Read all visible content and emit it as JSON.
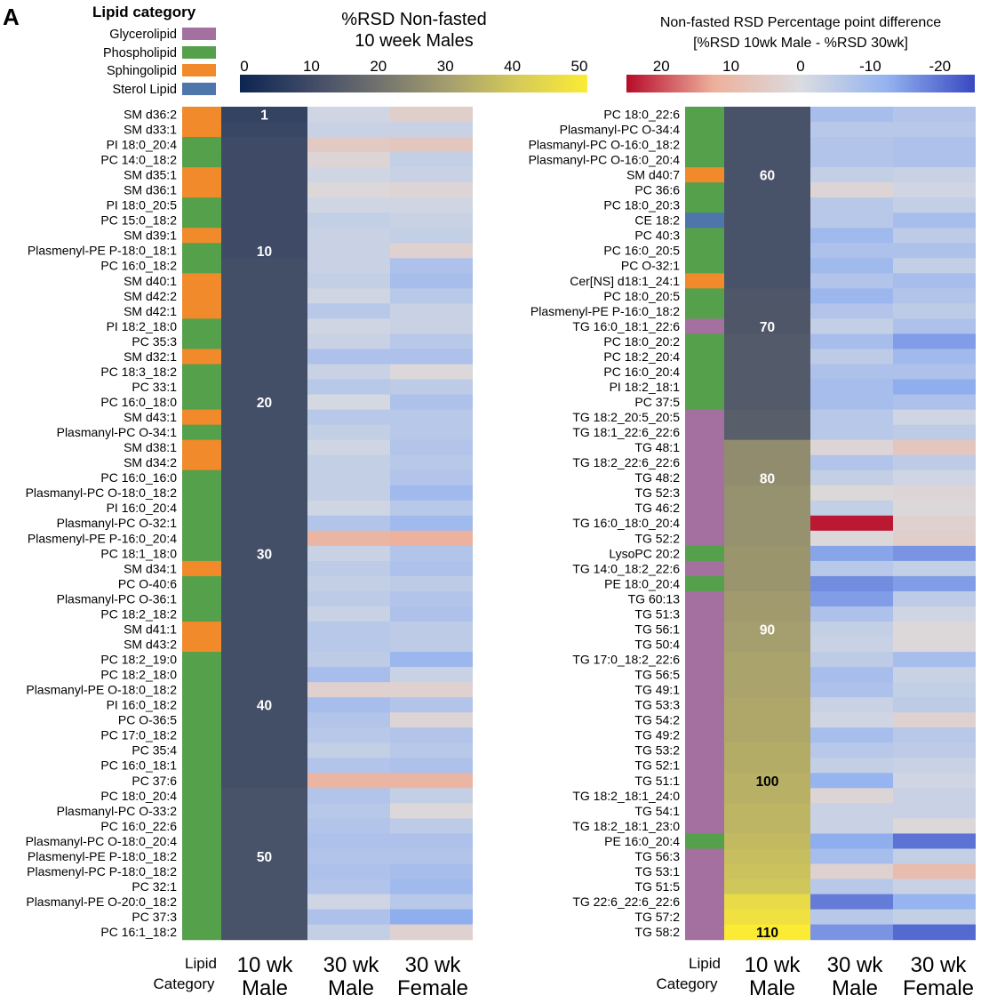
{
  "panel_label": "A",
  "legend": {
    "title": "Lipid category",
    "items": [
      {
        "label": "Glycerolipid",
        "color": "#A3709F"
      },
      {
        "label": "Phospholipid",
        "color": "#54A04B"
      },
      {
        "label": "Sphingolipid",
        "color": "#F18A2A"
      },
      {
        "label": "Sterol Lipid",
        "color": "#4F76AB"
      }
    ]
  },
  "colorbar_rsd": {
    "title_line1": "%RSD Non-fasted",
    "title_line2": "10 week Males",
    "ticks": [
      "0",
      "10",
      "20",
      "30",
      "40",
      "50"
    ],
    "range": [
      0,
      50
    ],
    "colors": [
      "#0D2552",
      "#3E4A66",
      "#72726E",
      "#A59E6E",
      "#D5CB58",
      "#FBEB35"
    ]
  },
  "colorbar_diff": {
    "title_line1": "Non-fasted RSD Percentage point difference",
    "title_line2": "[%RSD 10wk Male - %RSD 30wk]",
    "ticks": [
      "20",
      "10",
      "0",
      "-10",
      "-20"
    ],
    "range": [
      25,
      -25
    ],
    "colors": [
      "#B70B2A",
      "#EDB09B",
      "#DADCE0",
      "#93B2F0",
      "#3848C2"
    ]
  },
  "column_labels": {
    "category": [
      "Lipid",
      "Category"
    ],
    "col1": [
      "10 wk",
      "Male"
    ],
    "col2": [
      "30 wk",
      "Male"
    ],
    "col3": [
      "30 wk",
      "Female"
    ]
  },
  "chart_data": [
    {
      "type": "heatmap",
      "rank_labels": [
        "1",
        "10",
        "20",
        "30",
        "40",
        "50"
      ],
      "columns": [
        "Lipid Category",
        "10 wk Male",
        "30 wk Male",
        "30 wk Female"
      ],
      "rows": [
        [
          "SM d36:2",
          "S",
          8,
          -2,
          4
        ],
        [
          "SM d33:1",
          "S",
          9,
          -3,
          -3
        ],
        [
          "PI 18:0_20:4",
          "P",
          10,
          5,
          6
        ],
        [
          "PC 14:0_18:2",
          "P",
          10,
          2,
          -4
        ],
        [
          "SM d35:1",
          "S",
          10,
          -2,
          -3
        ],
        [
          "SM d36:1",
          "S",
          10,
          1,
          2
        ],
        [
          "PI 18:0_20:5",
          "P",
          10,
          -2,
          -2
        ],
        [
          "PC 15:0_18:2",
          "P",
          10,
          -4,
          -3
        ],
        [
          "SM d39:1",
          "S",
          10,
          -3,
          -4
        ],
        [
          "Plasmenyl-PE P-18:0_18:1",
          "P",
          10,
          -3,
          3
        ],
        [
          "PC 16:0_18:2",
          "P",
          11,
          -3,
          -8
        ],
        [
          "SM d40:1",
          "S",
          11,
          -4,
          -9
        ],
        [
          "SM d42:2",
          "S",
          11,
          -2,
          -6
        ],
        [
          "SM d42:1",
          "S",
          11,
          -6,
          -3
        ],
        [
          "PI 18:2_18:0",
          "P",
          11,
          -2,
          -3
        ],
        [
          "PC 35:3",
          "P",
          11,
          -3,
          -6
        ],
        [
          "SM d32:1",
          "S",
          11,
          -8,
          -8
        ],
        [
          "PC 18:3_18:2",
          "P",
          11,
          -3,
          1
        ],
        [
          "PC 33:1",
          "P",
          11,
          -6,
          -5
        ],
        [
          "PC 16:0_18:0",
          "P",
          11,
          -1,
          -8
        ],
        [
          "SM d43:1",
          "S",
          11,
          -6,
          -6
        ],
        [
          "Plasmanyl-PC O-34:1",
          "P",
          11,
          -4,
          -6
        ],
        [
          "SM d38:1",
          "S",
          11,
          -2,
          -7
        ],
        [
          "SM d34:2",
          "S",
          11,
          -4,
          -6
        ],
        [
          "PC 16:0_16:0",
          "P",
          11,
          -4,
          -7
        ],
        [
          "Plasmanyl-PC O-18:0_18:2",
          "P",
          11,
          -4,
          -10
        ],
        [
          "PI 16:0_20:4",
          "P",
          11,
          -2,
          -6
        ],
        [
          "Plasmanyl-PC O-32:1",
          "P",
          11,
          -7,
          -10
        ],
        [
          "Plasmenyl-PE P-16:0_20:4",
          "P",
          11,
          11,
          12
        ],
        [
          "PC 18:1_18:0",
          "P",
          11,
          -3,
          -7
        ],
        [
          "SM d34:1",
          "S",
          11,
          -5,
          -8
        ],
        [
          "PC O-40:6",
          "P",
          11,
          -4,
          -5
        ],
        [
          "Plasmanyl-PC O-36:1",
          "P",
          11,
          -5,
          -7
        ],
        [
          "PC 18:2_18:2",
          "P",
          11,
          -3,
          -8
        ],
        [
          "SM d41:1",
          "S",
          11,
          -6,
          -5
        ],
        [
          "SM d43:2",
          "S",
          11,
          -6,
          -5
        ],
        [
          "PC 18:2_19:0",
          "P",
          11,
          -5,
          -11
        ],
        [
          "PC 18:2_18:0",
          "P",
          11,
          -9,
          -3
        ],
        [
          "Plasmanyl-PE O-18:0_18:2",
          "P",
          11,
          3,
          3
        ],
        [
          "PI 16:0_18:2",
          "P",
          11,
          -9,
          -7
        ],
        [
          "PC O-36:5",
          "P",
          11,
          -7,
          2
        ],
        [
          "PC 17:0_18:2",
          "P",
          11,
          -6,
          -7
        ],
        [
          "PC 35:4",
          "P",
          11,
          -4,
          -6
        ],
        [
          "PC 16:0_18:1",
          "P",
          11,
          -7,
          -8
        ],
        [
          "PC 37:6",
          "P",
          11,
          11,
          11
        ],
        [
          "PC 18:0_20:4",
          "P",
          12,
          -7,
          -4
        ],
        [
          "Plasmanyl-PC O-33:2",
          "P",
          12,
          -6,
          1
        ],
        [
          "PC 16:0_22:6",
          "P",
          12,
          -7,
          -5
        ],
        [
          "Plasmanyl-PC O-18:0_20:4",
          "P",
          12,
          -8,
          -8
        ],
        [
          "Plasmenyl-PE P-18:0_18:2",
          "P",
          12,
          -7,
          -7
        ],
        [
          "Plasmenyl-PC P-18:0_18:2",
          "P",
          12,
          -8,
          -9
        ],
        [
          "PC 32:1",
          "P",
          12,
          -7,
          -10
        ],
        [
          "Plasmanyl-PE O-20:0_18:2",
          "P",
          12,
          -2,
          -6
        ],
        [
          "PC 37:3",
          "P",
          12,
          -8,
          -13
        ],
        [
          "PC 16:1_18:2",
          "P",
          12,
          -4,
          3
        ]
      ]
    },
    {
      "type": "heatmap",
      "rank_labels": [
        "60",
        "70",
        "80",
        "90",
        "100",
        "110"
      ],
      "columns": [
        "Lipid Category",
        "10 wk Male",
        "30 wk Male",
        "30 wk Female"
      ],
      "rows": [
        [
          "PC 18:0_22:6",
          "P",
          12,
          -9,
          -7
        ],
        [
          "Plasmanyl-PC O-34:4",
          "P",
          12,
          -6,
          -6
        ],
        [
          "Plasmanyl-PC O-16:0_18:2",
          "P",
          12,
          -7,
          -8
        ],
        [
          "Plasmanyl-PC O-16:0_20:4",
          "P",
          12,
          -7,
          -8
        ],
        [
          "SM d40:7",
          "S",
          12,
          -4,
          -3
        ],
        [
          "PC 36:6",
          "P",
          12,
          2,
          -2
        ],
        [
          "PC 18:0_20:3",
          "P",
          12,
          -6,
          -4
        ],
        [
          "CE 18:2",
          "E",
          12,
          -6,
          -9
        ],
        [
          "PC 40:3",
          "P",
          12,
          -10,
          -5
        ],
        [
          "PC 16:0_20:5",
          "P",
          12,
          -8,
          -8
        ],
        [
          "PC O-32:1",
          "P",
          12,
          -10,
          -4
        ],
        [
          "Cer[NS] d18:1_24:1",
          "S",
          12,
          -7,
          -9
        ],
        [
          "PC 18:0_20:5",
          "P",
          13,
          -11,
          -7
        ],
        [
          "Plasmenyl-PE P-16:0_18:2",
          "P",
          13,
          -7,
          -5
        ],
        [
          "TG 16:0_18:1_22:6",
          "G",
          13,
          -4,
          -8
        ],
        [
          "PC 18:0_20:2",
          "P",
          14,
          -9,
          -15
        ],
        [
          "PC 18:2_20:4",
          "P",
          14,
          -5,
          -10
        ],
        [
          "PC 16:0_20:4",
          "P",
          14,
          -8,
          -8
        ],
        [
          "PI 18:2_18:1",
          "P",
          14,
          -9,
          -13
        ],
        [
          "PC 37:5",
          "P",
          14,
          -9,
          -8
        ],
        [
          "TG 18:2_20:5_20:5",
          "G",
          15,
          -6,
          -2
        ],
        [
          "TG 18:1_22:6_22:6",
          "G",
          15,
          -6,
          -5
        ],
        [
          "TG 48:1",
          "G",
          26,
          2,
          6
        ],
        [
          "TG 18:2_22:6_22:6",
          "G",
          26,
          -7,
          -5
        ],
        [
          "TG 48:2",
          "G",
          26,
          -4,
          -2
        ],
        [
          "TG 52:3",
          "G",
          27,
          1,
          2
        ],
        [
          "TG 46:2",
          "G",
          27,
          -4,
          1
        ],
        [
          "TG 16:0_18:0_20:4",
          "G",
          27,
          24,
          3
        ],
        [
          "TG 52:2",
          "G",
          27,
          1,
          4
        ],
        [
          "LysoPC 20:2",
          "P",
          28,
          -14,
          -16
        ],
        [
          "TG 14:0_18:2_22:6",
          "G",
          28,
          -6,
          -4
        ],
        [
          "PE 18:0_20:4",
          "P",
          28,
          -17,
          -15
        ],
        [
          "TG 60:13",
          "G",
          29,
          -15,
          -5
        ],
        [
          "TG 51:3",
          "G",
          29,
          -8,
          -2
        ],
        [
          "TG 56:1",
          "G",
          30,
          -4,
          1
        ],
        [
          "TG 50:4",
          "G",
          30,
          -3,
          1
        ],
        [
          "TG 17:0_18:2_22:6",
          "G",
          31,
          -5,
          -9
        ],
        [
          "TG 56:5",
          "G",
          31,
          -9,
          -3
        ],
        [
          "TG 49:1",
          "G",
          31,
          -8,
          -4
        ],
        [
          "TG 53:3",
          "G",
          32,
          -3,
          -5
        ],
        [
          "TG 54:2",
          "G",
          32,
          -2,
          3
        ],
        [
          "TG 49:2",
          "G",
          32,
          -9,
          -6
        ],
        [
          "TG 53:2",
          "G",
          33,
          -6,
          -5
        ],
        [
          "TG 52:1",
          "G",
          33,
          -4,
          -3
        ],
        [
          "TG 51:1",
          "G",
          34,
          -12,
          -2
        ],
        [
          "TG 18:2_18:1_24:0",
          "G",
          34,
          2,
          -3
        ],
        [
          "TG 54:1",
          "G",
          35,
          -3,
          -3
        ],
        [
          "TG 18:2_18:1_23:0",
          "G",
          35,
          -3,
          1
        ],
        [
          "PE 16:0_20:4",
          "P",
          36,
          -13,
          -20
        ],
        [
          "TG 56:3",
          "G",
          37,
          -9,
          -4
        ],
        [
          "TG 53:1",
          "G",
          38,
          3,
          9
        ],
        [
          "TG 51:5",
          "G",
          39,
          -6,
          -3
        ],
        [
          "TG 22:6_22:6_22:6",
          "G",
          45,
          -19,
          -12
        ],
        [
          "TG 57:2",
          "G",
          47,
          -6,
          -4
        ],
        [
          "TG 58:2",
          "G",
          50,
          -16,
          -21
        ]
      ]
    }
  ]
}
